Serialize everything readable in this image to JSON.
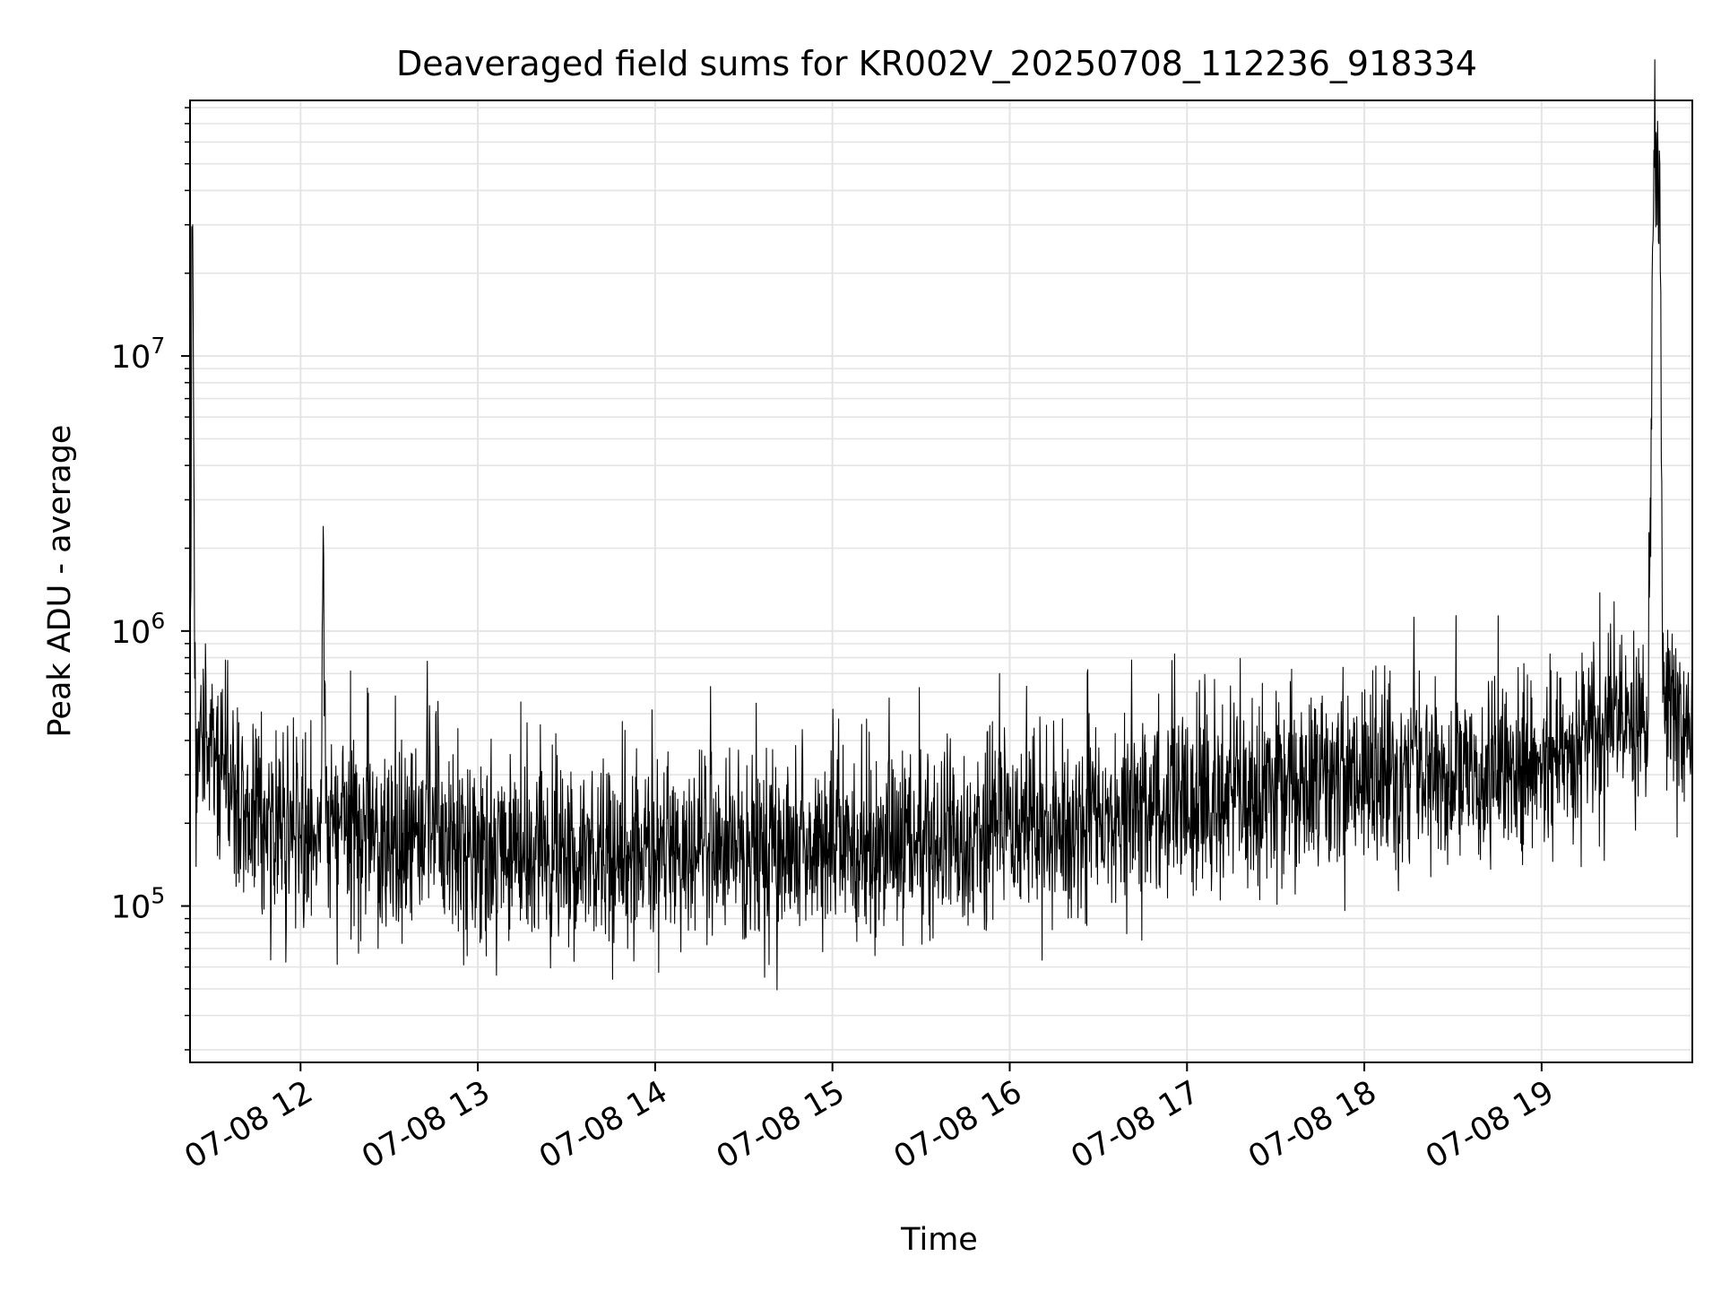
{
  "chart_data": {
    "type": "line",
    "title": "Deaveraged field sums for KR002V_20250708_112236_918334",
    "xlabel": "Time",
    "ylabel": "Peak ADU - average",
    "yscale": "log",
    "ylim": [
      27000,
      85000000
    ],
    "xlim": [
      "2025-07-08 11:22:36",
      "2025-07-08 19:51:00"
    ],
    "x_ticks": [
      "07-08 12",
      "07-08 13",
      "07-08 14",
      "07-08 15",
      "07-08 16",
      "07-08 17",
      "07-08 18",
      "07-08 19"
    ],
    "y_ticks": [
      {
        "base": "10",
        "exp": "5"
      },
      {
        "base": "10",
        "exp": "6"
      },
      {
        "base": "10",
        "exp": "7"
      }
    ],
    "grid": true,
    "color": "#000000",
    "series": [
      {
        "points": [
          [
            "2025-07-08 11:22:36",
            800000
          ],
          [
            "2025-07-08 11:23:30",
            30000000
          ],
          [
            "2025-07-08 11:24:30",
            400000
          ],
          [
            "2025-07-08 11:40:00",
            250000
          ],
          [
            "2025-07-08 11:52:00",
            200000
          ],
          [
            "2025-07-08 12:00:00",
            180000
          ],
          [
            "2025-07-08 12:07:00",
            200000
          ],
          [
            "2025-07-08 12:07:40",
            2400000
          ],
          [
            "2025-07-08 12:08:30",
            200000
          ],
          [
            "2025-07-08 12:30:00",
            170000
          ],
          [
            "2025-07-08 12:45:00",
            210000
          ],
          [
            "2025-07-08 13:00:00",
            160000
          ],
          [
            "2025-07-08 13:30:00",
            150000
          ],
          [
            "2025-07-08 14:00:00",
            160000
          ],
          [
            "2025-07-08 14:30:00",
            160000
          ],
          [
            "2025-07-08 15:00:00",
            160000
          ],
          [
            "2025-07-08 15:30:00",
            170000
          ],
          [
            "2025-07-08 16:00:00",
            190000
          ],
          [
            "2025-07-08 16:30:00",
            210000
          ],
          [
            "2025-07-08 17:00:00",
            240000
          ],
          [
            "2025-07-08 17:30:00",
            270000
          ],
          [
            "2025-07-08 18:00:00",
            290000
          ],
          [
            "2025-07-08 18:30:00",
            310000
          ],
          [
            "2025-07-08 19:00:00",
            330000
          ],
          [
            "2025-07-08 19:20:00",
            420000
          ],
          [
            "2025-07-08 19:36:00",
            450000
          ],
          [
            "2025-07-08 19:38:00",
            56000000
          ],
          [
            "2025-07-08 19:40:00",
            50000000
          ],
          [
            "2025-07-08 19:41:00",
            550000
          ],
          [
            "2025-07-08 19:51:00",
            480000
          ]
        ]
      }
    ]
  }
}
